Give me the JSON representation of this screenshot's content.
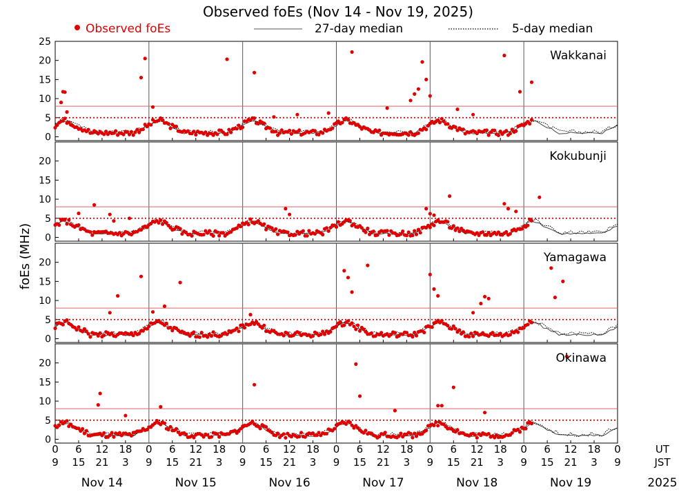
{
  "chart_data": {
    "type": "scatter",
    "title": "Observed foEs (Nov 14 - Nov 19, 2025)",
    "ylabel": "foEs (MHz)",
    "ylim": [
      -1,
      25
    ],
    "xlim_hours": [
      0,
      144
    ],
    "legend": {
      "placement": "top",
      "items": [
        {
          "key": "observed",
          "label": "Observed foEs",
          "color": "#e00000",
          "marker": "dot"
        },
        {
          "key": "median27",
          "label": "27-day median",
          "color": "#555555",
          "marker": "solid-line"
        },
        {
          "key": "median5",
          "label": "5-day median",
          "color": "#000000",
          "marker": "dotted-line"
        }
      ]
    },
    "reference_lines": [
      {
        "value": 8,
        "color": "#e06060",
        "style": "solid"
      },
      {
        "value": 5,
        "color": "#d00000",
        "style": "dotted"
      }
    ],
    "ut_label": "UT",
    "jst_label": "JST",
    "year": "2025",
    "days": [
      "Nov 14",
      "Nov 15",
      "Nov 16",
      "Nov 17",
      "Nov 18",
      "Nov 19"
    ],
    "ut_ticks": [
      "0",
      "6",
      "12",
      "18",
      "0",
      "6",
      "12",
      "18",
      "0",
      "6",
      "12",
      "18",
      "0",
      "6",
      "12",
      "18",
      "0",
      "6",
      "12",
      "18",
      "0",
      "6",
      "12",
      "18",
      "0"
    ],
    "jst_ticks": [
      "9",
      "15",
      "21",
      "3",
      "9",
      "15",
      "21",
      "3",
      "9",
      "15",
      "21",
      "3",
      "9",
      "15",
      "21",
      "3",
      "9",
      "15",
      "21",
      "3",
      "9",
      "15",
      "21",
      "3",
      "9"
    ],
    "panels": [
      {
        "station": "Wakkanai",
        "yticks": [
          0,
          5,
          10,
          15,
          20,
          25
        ],
        "obs_end_hours": 122,
        "spikes": [
          [
            1.5,
            9
          ],
          [
            2,
            11.8
          ],
          [
            2.5,
            11.7
          ],
          [
            3,
            6.5
          ],
          [
            22,
            15.5
          ],
          [
            23,
            20.5
          ],
          [
            25,
            7.8
          ],
          [
            44,
            20.3
          ],
          [
            51,
            16.8
          ],
          [
            56,
            5.2
          ],
          [
            62,
            5.8
          ],
          [
            70,
            6.2
          ],
          [
            76,
            22.2
          ],
          [
            85,
            7.5
          ],
          [
            91,
            9.5
          ],
          [
            92,
            11.2
          ],
          [
            93,
            12.5
          ],
          [
            94,
            19.6
          ],
          [
            95,
            15
          ],
          [
            96,
            10.7
          ],
          [
            103,
            7.2
          ],
          [
            107,
            5.8
          ],
          [
            115,
            21.3
          ],
          [
            119,
            11.8
          ],
          [
            122,
            14.3
          ]
        ]
      },
      {
        "station": "Kokubunji",
        "yticks": [
          0,
          5,
          10,
          15,
          20
        ],
        "obs_end_hours": 122,
        "spikes": [
          [
            6,
            6.3
          ],
          [
            10,
            8.5
          ],
          [
            14,
            6
          ],
          [
            15,
            4.3
          ],
          [
            19,
            5
          ],
          [
            59,
            7.5
          ],
          [
            60,
            6
          ],
          [
            95,
            7.5
          ],
          [
            96,
            6.2
          ],
          [
            97,
            5.8
          ],
          [
            101,
            10.8
          ],
          [
            115,
            8.8
          ],
          [
            116,
            7.5
          ],
          [
            118,
            6.8
          ],
          [
            124,
            10.5
          ]
        ]
      },
      {
        "station": "Yamagawa",
        "yticks": [
          0,
          5,
          10,
          15,
          20
        ],
        "obs_end_hours": 122,
        "spikes": [
          [
            14,
            6.8
          ],
          [
            16,
            11.2
          ],
          [
            22,
            16.3
          ],
          [
            25,
            7
          ],
          [
            28,
            8.5
          ],
          [
            32,
            14.7
          ],
          [
            50,
            6.3
          ],
          [
            74,
            17.8
          ],
          [
            75,
            16
          ],
          [
            76,
            12.2
          ],
          [
            80,
            19.2
          ],
          [
            96,
            16.8
          ],
          [
            97,
            13
          ],
          [
            98,
            11.2
          ],
          [
            107,
            6.8
          ],
          [
            109,
            9.2
          ],
          [
            110,
            11
          ],
          [
            111,
            10.5
          ],
          [
            127,
            18.5
          ],
          [
            128,
            10.8
          ],
          [
            130,
            15
          ]
        ]
      },
      {
        "station": "Okinawa",
        "yticks": [
          0,
          5,
          10,
          15,
          20
        ],
        "obs_end_hours": 122,
        "spikes": [
          [
            11,
            9
          ],
          [
            11.5,
            12
          ],
          [
            18,
            6.2
          ],
          [
            27,
            8.5
          ],
          [
            51,
            14.3
          ],
          [
            77,
            19.7
          ],
          [
            78,
            11.3
          ],
          [
            87,
            7.5
          ],
          [
            98,
            8.8
          ],
          [
            99,
            8.8
          ],
          [
            102,
            13.6
          ],
          [
            110,
            7
          ],
          [
            131,
            21.7
          ]
        ]
      }
    ]
  }
}
